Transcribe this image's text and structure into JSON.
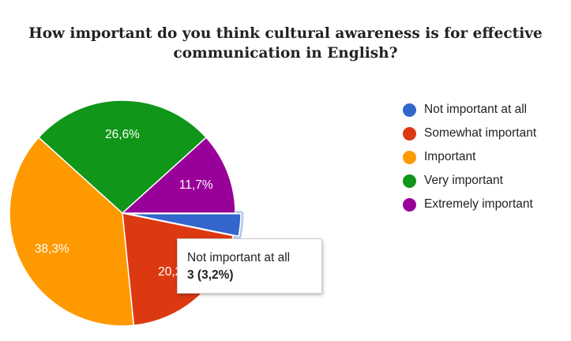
{
  "chart_data": {
    "type": "pie",
    "title": "How important do you think cultural awareness is for effective communication in English?",
    "title_lines": [
      "How important do you think cultural awareness is for effective",
      "communication in English?"
    ],
    "slices": [
      {
        "name": "Not important at all",
        "percent": 3.2,
        "label": "",
        "color": "#3366cc",
        "highlighted": true
      },
      {
        "name": "Somewhat important",
        "percent": 20.2,
        "label": "20,2%",
        "color": "#dc3912"
      },
      {
        "name": "Important",
        "percent": 38.3,
        "label": "38,3%",
        "color": "#ff9900"
      },
      {
        "name": "Very important",
        "percent": 26.6,
        "label": "26,6%",
        "color": "#109618"
      },
      {
        "name": "Extremely important",
        "percent": 11.7,
        "label": "11,7%",
        "color": "#990099"
      }
    ],
    "legend": {
      "position": "right"
    },
    "tooltip": {
      "title": "Not important at all",
      "value": "3 (3,2%)"
    }
  }
}
